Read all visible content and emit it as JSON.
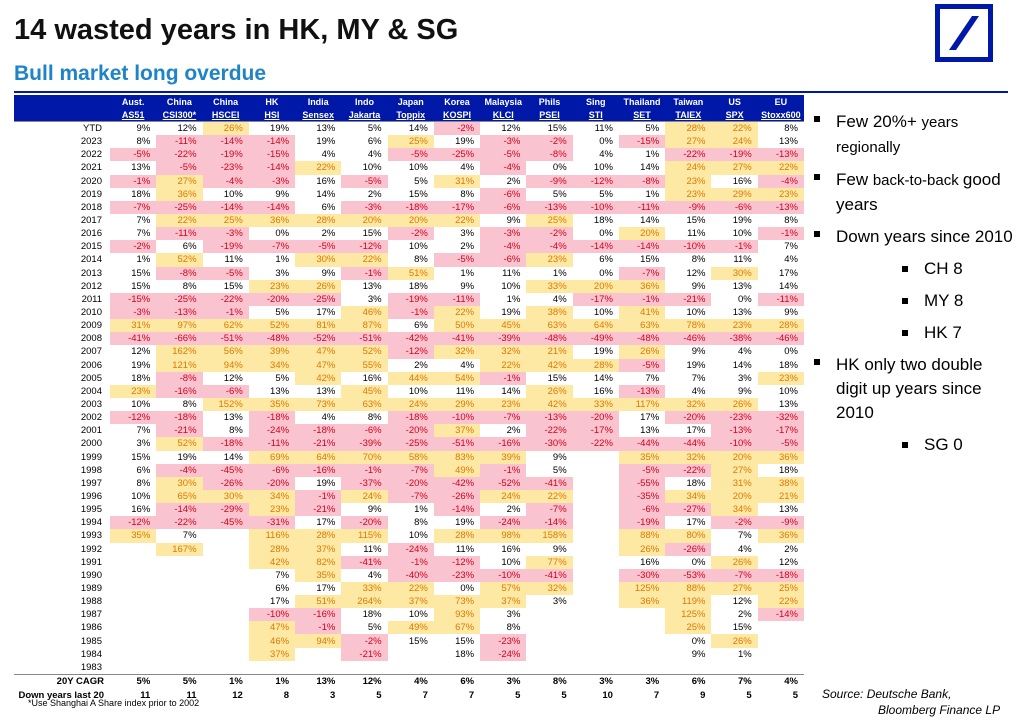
{
  "header": {
    "title": "14 wasted years in HK, MY & SG",
    "subtitle": "Bull market long overdue",
    "logo_icon": "deutsche-bank-slash-logo-icon",
    "brand_color": "#0018a8",
    "accent_color": "#1f84c6"
  },
  "table": {
    "columns": [
      {
        "line1": "Aust.",
        "line2": "AS51"
      },
      {
        "line1": "China",
        "line2": "CSI300*"
      },
      {
        "line1": "China",
        "line2": "HSCEI"
      },
      {
        "line1": "HK",
        "line2": "HSI"
      },
      {
        "line1": "India",
        "line2": "Sensex"
      },
      {
        "line1": "Indo",
        "line2": "Jakarta"
      },
      {
        "line1": "Japan",
        "line2": "Toppix"
      },
      {
        "line1": "Korea",
        "line2": "KOSPI"
      },
      {
        "line1": "Malaysia",
        "line2": "KLCI"
      },
      {
        "line1": "Phils",
        "line2": "PSEI"
      },
      {
        "line1": "Sing",
        "line2": "STI"
      },
      {
        "line1": "Thailand",
        "line2": "SET"
      },
      {
        "line1": "Taiwan",
        "line2": "TAIEX"
      },
      {
        "line1": "US",
        "line2": "SPX"
      },
      {
        "line1": "EU",
        "line2": "Stoxx600"
      }
    ],
    "negative_color": "#d6001c",
    "negative_fill": "#f9c4cf",
    "positive_color": "#e07800",
    "positive_fill": "#fde9a4",
    "rows": [
      {
        "year": "YTD",
        "values": [
          "9%",
          "12%",
          "26%",
          "19%",
          "13%",
          "5%",
          "14%",
          "-2%",
          "12%",
          "15%",
          "11%",
          "5%",
          "28%",
          "22%",
          "8%"
        ]
      },
      {
        "year": "2023",
        "values": [
          "8%",
          "-11%",
          "-14%",
          "-14%",
          "19%",
          "6%",
          "25%",
          "19%",
          "-3%",
          "-2%",
          "0%",
          "-15%",
          "27%",
          "24%",
          "13%"
        ]
      },
      {
        "year": "2022",
        "values": [
          "-5%",
          "-22%",
          "-19%",
          "-15%",
          "4%",
          "4%",
          "-5%",
          "-25%",
          "-5%",
          "-8%",
          "4%",
          "1%",
          "-22%",
          "-19%",
          "-13%"
        ]
      },
      {
        "year": "2021",
        "values": [
          "13%",
          "-5%",
          "-23%",
          "-14%",
          "22%",
          "10%",
          "10%",
          "4%",
          "-4%",
          "0%",
          "10%",
          "14%",
          "24%",
          "27%",
          "22%"
        ]
      },
      {
        "year": "2020",
        "values": [
          "-1%",
          "27%",
          "-4%",
          "-3%",
          "16%",
          "-5%",
          "5%",
          "31%",
          "2%",
          "-9%",
          "-12%",
          "-8%",
          "23%",
          "16%",
          "-4%"
        ]
      },
      {
        "year": "2019",
        "values": [
          "18%",
          "36%",
          "10%",
          "9%",
          "14%",
          "2%",
          "15%",
          "8%",
          "-6%",
          "5%",
          "5%",
          "1%",
          "23%",
          "29%",
          "23%"
        ]
      },
      {
        "year": "2018",
        "values": [
          "-7%",
          "-25%",
          "-14%",
          "-14%",
          "6%",
          "-3%",
          "-18%",
          "-17%",
          "-6%",
          "-13%",
          "-10%",
          "-11%",
          "-9%",
          "-6%",
          "-13%"
        ]
      },
      {
        "year": "2017",
        "values": [
          "7%",
          "22%",
          "25%",
          "36%",
          "28%",
          "20%",
          "20%",
          "22%",
          "9%",
          "25%",
          "18%",
          "14%",
          "15%",
          "19%",
          "8%"
        ]
      },
      {
        "year": "2016",
        "values": [
          "7%",
          "-11%",
          "-3%",
          "0%",
          "2%",
          "15%",
          "-2%",
          "3%",
          "-3%",
          "-2%",
          "0%",
          "20%",
          "11%",
          "10%",
          "-1%"
        ]
      },
      {
        "year": "2015",
        "values": [
          "-2%",
          "6%",
          "-19%",
          "-7%",
          "-5%",
          "-12%",
          "10%",
          "2%",
          "-4%",
          "-4%",
          "-14%",
          "-14%",
          "-10%",
          "-1%",
          "7%"
        ]
      },
      {
        "year": "2014",
        "values": [
          "1%",
          "52%",
          "11%",
          "1%",
          "30%",
          "22%",
          "8%",
          "-5%",
          "-6%",
          "23%",
          "6%",
          "15%",
          "8%",
          "11%",
          "4%"
        ]
      },
      {
        "year": "2013",
        "values": [
          "15%",
          "-8%",
          "-5%",
          "3%",
          "9%",
          "-1%",
          "51%",
          "1%",
          "11%",
          "1%",
          "0%",
          "-7%",
          "12%",
          "30%",
          "17%"
        ]
      },
      {
        "year": "2012",
        "values": [
          "15%",
          "8%",
          "15%",
          "23%",
          "26%",
          "13%",
          "18%",
          "9%",
          "10%",
          "33%",
          "20%",
          "36%",
          "9%",
          "13%",
          "14%"
        ]
      },
      {
        "year": "2011",
        "values": [
          "-15%",
          "-25%",
          "-22%",
          "-20%",
          "-25%",
          "3%",
          "-19%",
          "-11%",
          "1%",
          "4%",
          "-17%",
          "-1%",
          "-21%",
          "0%",
          "-11%"
        ]
      },
      {
        "year": "2010",
        "values": [
          "-3%",
          "-13%",
          "-1%",
          "5%",
          "17%",
          "46%",
          "-1%",
          "22%",
          "19%",
          "38%",
          "10%",
          "41%",
          "10%",
          "13%",
          "9%"
        ]
      },
      {
        "year": "2009",
        "values": [
          "31%",
          "97%",
          "62%",
          "52%",
          "81%",
          "87%",
          "6%",
          "50%",
          "45%",
          "63%",
          "64%",
          "63%",
          "78%",
          "23%",
          "28%"
        ]
      },
      {
        "year": "2008",
        "values": [
          "-41%",
          "-66%",
          "-51%",
          "-48%",
          "-52%",
          "-51%",
          "-42%",
          "-41%",
          "-39%",
          "-48%",
          "-49%",
          "-48%",
          "-46%",
          "-38%",
          "-46%"
        ]
      },
      {
        "year": "2007",
        "values": [
          "12%",
          "162%",
          "56%",
          "39%",
          "47%",
          "52%",
          "-12%",
          "32%",
          "32%",
          "21%",
          "19%",
          "26%",
          "9%",
          "4%",
          "0%"
        ]
      },
      {
        "year": "2006",
        "values": [
          "19%",
          "121%",
          "94%",
          "34%",
          "47%",
          "55%",
          "2%",
          "4%",
          "22%",
          "42%",
          "28%",
          "-5%",
          "19%",
          "14%",
          "18%"
        ]
      },
      {
        "year": "2005",
        "values": [
          "18%",
          "-8%",
          "12%",
          "5%",
          "42%",
          "16%",
          "44%",
          "54%",
          "-1%",
          "15%",
          "14%",
          "7%",
          "7%",
          "3%",
          "23%"
        ]
      },
      {
        "year": "2004",
        "values": [
          "23%",
          "-16%",
          "-6%",
          "13%",
          "13%",
          "45%",
          "10%",
          "11%",
          "14%",
          "26%",
          "16%",
          "-13%",
          "4%",
          "9%",
          "10%"
        ]
      },
      {
        "year": "2003",
        "values": [
          "10%",
          "8%",
          "152%",
          "35%",
          "73%",
          "63%",
          "24%",
          "29%",
          "23%",
          "42%",
          "33%",
          "117%",
          "32%",
          "26%",
          "13%"
        ]
      },
      {
        "year": "2002",
        "values": [
          "-12%",
          "-18%",
          "13%",
          "-18%",
          "4%",
          "8%",
          "-18%",
          "-10%",
          "-7%",
          "-13%",
          "-20%",
          "17%",
          "-20%",
          "-23%",
          "-32%"
        ]
      },
      {
        "year": "2001",
        "values": [
          "7%",
          "-21%",
          "8%",
          "-24%",
          "-18%",
          "-6%",
          "-20%",
          "37%",
          "2%",
          "-22%",
          "-17%",
          "13%",
          "17%",
          "-13%",
          "-17%"
        ]
      },
      {
        "year": "2000",
        "values": [
          "3%",
          "52%",
          "-18%",
          "-11%",
          "-21%",
          "-39%",
          "-25%",
          "-51%",
          "-16%",
          "-30%",
          "-22%",
          "-44%",
          "-44%",
          "-10%",
          "-5%"
        ]
      },
      {
        "year": "1999",
        "values": [
          "15%",
          "19%",
          "14%",
          "69%",
          "64%",
          "70%",
          "58%",
          "83%",
          "39%",
          "9%",
          "",
          "35%",
          "32%",
          "20%",
          "36%"
        ]
      },
      {
        "year": "1998",
        "values": [
          "6%",
          "-4%",
          "-45%",
          "-6%",
          "-16%",
          "-1%",
          "-7%",
          "49%",
          "-1%",
          "5%",
          "",
          "-5%",
          "-22%",
          "27%",
          "18%"
        ]
      },
      {
        "year": "1997",
        "values": [
          "8%",
          "30%",
          "-26%",
          "-20%",
          "19%",
          "-37%",
          "-20%",
          "-42%",
          "-52%",
          "-41%",
          "",
          "-55%",
          "18%",
          "31%",
          "38%"
        ]
      },
      {
        "year": "1996",
        "values": [
          "10%",
          "65%",
          "30%",
          "34%",
          "-1%",
          "24%",
          "-7%",
          "-26%",
          "24%",
          "22%",
          "",
          "-35%",
          "34%",
          "20%",
          "21%"
        ]
      },
      {
        "year": "1995",
        "values": [
          "16%",
          "-14%",
          "-29%",
          "23%",
          "-21%",
          "9%",
          "1%",
          "-14%",
          "2%",
          "-7%",
          "",
          "-6%",
          "-27%",
          "34%",
          "13%"
        ]
      },
      {
        "year": "1994",
        "values": [
          "-12%",
          "-22%",
          "-45%",
          "-31%",
          "17%",
          "-20%",
          "8%",
          "19%",
          "-24%",
          "-14%",
          "",
          "-19%",
          "17%",
          "-2%",
          "-9%"
        ]
      },
      {
        "year": "1993",
        "values": [
          "35%",
          "7%",
          "",
          "116%",
          "28%",
          "115%",
          "10%",
          "28%",
          "98%",
          "158%",
          "",
          "88%",
          "80%",
          "7%",
          "36%"
        ]
      },
      {
        "year": "1992",
        "values": [
          "",
          "167%",
          "",
          "28%",
          "37%",
          "11%",
          "-24%",
          "11%",
          "16%",
          "9%",
          "",
          "26%",
          "-26%",
          "4%",
          "2%"
        ]
      },
      {
        "year": "1991",
        "values": [
          "",
          "",
          "",
          "42%",
          "82%",
          "-41%",
          "-1%",
          "-12%",
          "10%",
          "77%",
          "",
          "16%",
          "0%",
          "26%",
          "12%"
        ]
      },
      {
        "year": "1990",
        "values": [
          "",
          "",
          "",
          "7%",
          "35%",
          "4%",
          "-40%",
          "-23%",
          "-10%",
          "-41%",
          "",
          "-30%",
          "-53%",
          "-7%",
          "-18%"
        ]
      },
      {
        "year": "1989",
        "values": [
          "",
          "",
          "",
          "6%",
          "17%",
          "33%",
          "22%",
          "0%",
          "57%",
          "32%",
          "",
          "125%",
          "88%",
          "27%",
          "25%"
        ]
      },
      {
        "year": "1988",
        "values": [
          "",
          "",
          "",
          "17%",
          "51%",
          "264%",
          "37%",
          "73%",
          "37%",
          "3%",
          "",
          "36%",
          "119%",
          "12%",
          "22%"
        ]
      },
      {
        "year": "1987",
        "values": [
          "",
          "",
          "",
          "-10%",
          "-16%",
          "18%",
          "10%",
          "93%",
          "3%",
          "",
          "",
          "",
          "125%",
          "2%",
          "-14%"
        ]
      },
      {
        "year": "1986",
        "values": [
          "",
          "",
          "",
          "47%",
          "-1%",
          "5%",
          "49%",
          "67%",
          "8%",
          "",
          "",
          "",
          "25%",
          "15%",
          ""
        ]
      },
      {
        "year": "1985",
        "values": [
          "",
          "",
          "",
          "46%",
          "94%",
          "-2%",
          "15%",
          "15%",
          "-23%",
          "",
          "",
          "",
          "0%",
          "26%",
          ""
        ]
      },
      {
        "year": "1984",
        "values": [
          "",
          "",
          "",
          "37%",
          "",
          "-21%",
          "",
          "18%",
          "-24%",
          "",
          "",
          "",
          "9%",
          "1%",
          ""
        ]
      },
      {
        "year": "1983",
        "values": [
          "",
          "",
          "",
          "",
          "",
          "",
          "",
          "",
          "",
          "",
          "",
          "",
          "",
          "",
          ""
        ]
      }
    ],
    "footer_rows": [
      {
        "label": "20Y CAGR",
        "values": [
          "5%",
          "5%",
          "1%",
          "1%",
          "13%",
          "12%",
          "4%",
          "6%",
          "3%",
          "8%",
          "3%",
          "3%",
          "6%",
          "7%",
          "4%"
        ]
      },
      {
        "label": "Down years last 20",
        "values": [
          "11",
          "11",
          "12",
          "8",
          "3",
          "5",
          "7",
          "7",
          "5",
          "5",
          "10",
          "7",
          "9",
          "5",
          "5"
        ]
      }
    ],
    "footnote": "*Use Shanghai A Share index prior to 2002"
  },
  "bullets": [
    {
      "kind": "main",
      "parts": [
        "Few 20%+ ",
        "years regionally"
      ]
    },
    {
      "kind": "main",
      "parts": [
        "Few ",
        "back-to-back ",
        "good years"
      ]
    },
    {
      "kind": "main",
      "text": "Down years since 2010"
    },
    {
      "kind": "sub",
      "text": "CH 8"
    },
    {
      "kind": "sub",
      "text": "MY 8"
    },
    {
      "kind": "sub",
      "text": "HK 7"
    },
    {
      "kind": "main",
      "text": "HK only two double digit up years since 2010"
    },
    {
      "kind": "sub",
      "text": "SG 0"
    }
  ],
  "source": {
    "line1": "Source: Deutsche Bank,",
    "line2": "Bloomberg Finance LP"
  }
}
